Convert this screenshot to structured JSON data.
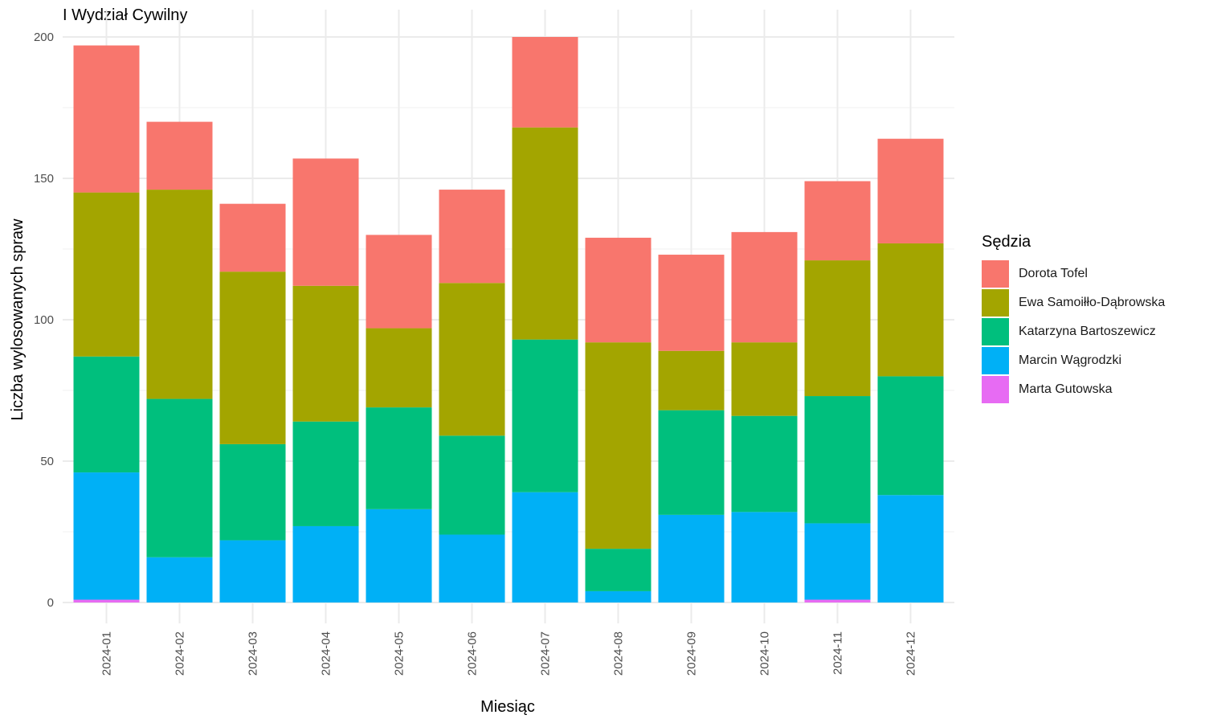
{
  "chart_data": {
    "type": "bar",
    "stacked": true,
    "title": "I Wydział Cywilny",
    "xlabel": "Miesiąc",
    "ylabel": "Liczba wylosowanych spraw",
    "ylim": [
      0,
      200
    ],
    "yticks": [
      0,
      50,
      100,
      150,
      200
    ],
    "grid": true,
    "legend_position": "right",
    "legend_title": "Sędzia",
    "categories": [
      "2024-01",
      "2024-02",
      "2024-03",
      "2024-04",
      "2024-05",
      "2024-06",
      "2024-07",
      "2024-08",
      "2024-09",
      "2024-10",
      "2024-11",
      "2024-12"
    ],
    "series": [
      {
        "name": "Marta Gutowska",
        "color": "#E76BF3",
        "values": [
          1,
          0,
          0,
          0,
          0,
          0,
          0,
          0,
          0,
          0,
          1,
          0
        ]
      },
      {
        "name": "Marcin Wągrodzki",
        "color": "#00B0F6",
        "values": [
          45,
          16,
          22,
          27,
          33,
          24,
          39,
          4,
          31,
          32,
          27,
          38
        ]
      },
      {
        "name": "Katarzyna Bartoszewicz",
        "color": "#00BF7D",
        "values": [
          41,
          56,
          34,
          37,
          36,
          35,
          54,
          15,
          37,
          34,
          45,
          42
        ]
      },
      {
        "name": "Ewa Samoiłło-Dąbrowska",
        "color": "#A3A500",
        "values": [
          58,
          74,
          61,
          48,
          28,
          54,
          75,
          73,
          21,
          26,
          48,
          47
        ]
      },
      {
        "name": "Dorota Tofel",
        "color": "#F8766D",
        "values": [
          52,
          24,
          24,
          45,
          33,
          33,
          32,
          37,
          34,
          39,
          28,
          37
        ]
      }
    ],
    "legend_order": [
      "Dorota Tofel",
      "Ewa Samoiłło-Dąbrowska",
      "Katarzyna Bartoszewicz",
      "Marcin Wągrodzki",
      "Marta Gutowska"
    ]
  }
}
